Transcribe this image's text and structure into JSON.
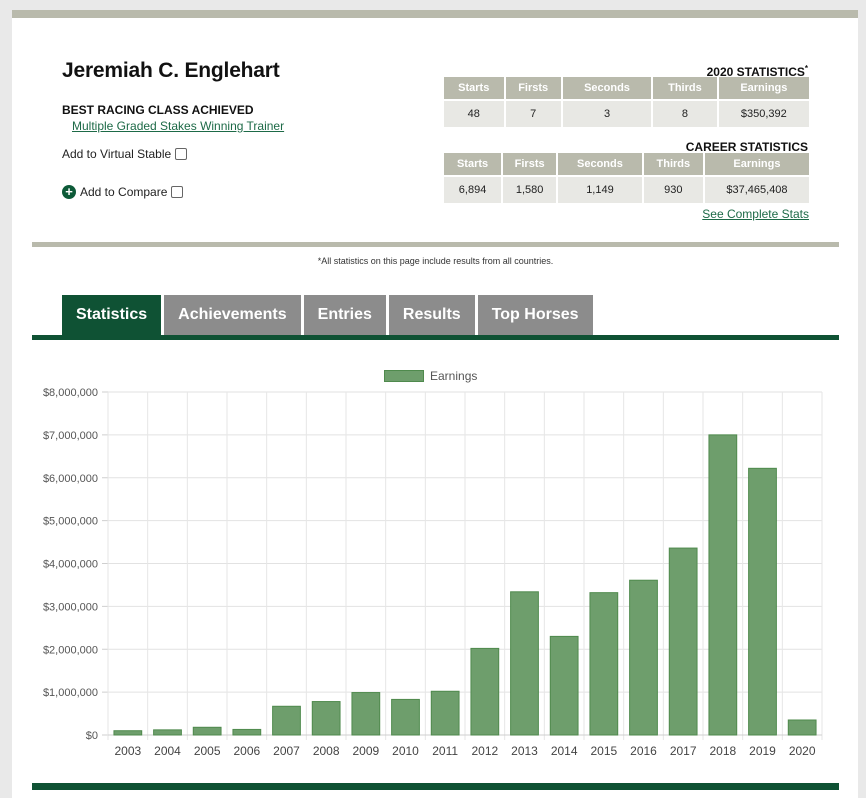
{
  "profile": {
    "name": "Jeremiah C. Englehart",
    "best_class_label": "BEST RACING CLASS ACHIEVED",
    "best_class_value": "Multiple Graded Stakes Winning Trainer",
    "virtual_stable_label": "Add to Virtual Stable",
    "compare_label": "Add to Compare"
  },
  "stats_2020": {
    "title": "2020 STATISTICS",
    "title_mark": "*",
    "headers": [
      "Starts",
      "Firsts",
      "Seconds",
      "Thirds",
      "Earnings"
    ],
    "values": [
      "48",
      "7",
      "3",
      "8",
      "$350,392"
    ]
  },
  "career_stats": {
    "title": "CAREER STATISTICS",
    "headers": [
      "Starts",
      "Firsts",
      "Seconds",
      "Thirds",
      "Earnings"
    ],
    "values": [
      "6,894",
      "1,580",
      "1,149",
      "930",
      "$37,465,408"
    ],
    "link": "See Complete Stats"
  },
  "note": "*All statistics on this page include results from all countries.",
  "tabs": [
    {
      "label": "Statistics",
      "active": true
    },
    {
      "label": "Achievements",
      "active": false
    },
    {
      "label": "Entries",
      "active": false
    },
    {
      "label": "Results",
      "active": false
    },
    {
      "label": "Top Horses",
      "active": false
    }
  ],
  "colors": {
    "brand_green": "#0f5234",
    "header_gray": "#b9baac",
    "bar_fill": "#6e9e6c",
    "link_green": "#1d6a47"
  },
  "chart_data": {
    "type": "bar",
    "categories": [
      "2003",
      "2004",
      "2005",
      "2006",
      "2007",
      "2008",
      "2009",
      "2010",
      "2011",
      "2012",
      "2013",
      "2014",
      "2015",
      "2016",
      "2017",
      "2018",
      "2019",
      "2020"
    ],
    "series": [
      {
        "name": "Earnings",
        "values": [
          100000,
          120000,
          180000,
          130000,
          670000,
          780000,
          990000,
          830000,
          1020000,
          2020000,
          3340000,
          2300000,
          3320000,
          3610000,
          4360000,
          7000000,
          6220000,
          350000
        ]
      }
    ],
    "ylim": [
      0,
      8000000
    ],
    "yticks": [
      "$0",
      "$1,000,000",
      "$2,000,000",
      "$3,000,000",
      "$4,000,000",
      "$5,000,000",
      "$6,000,000",
      "$7,000,000",
      "$8,000,000"
    ],
    "legend": "top-center",
    "grid": true
  }
}
